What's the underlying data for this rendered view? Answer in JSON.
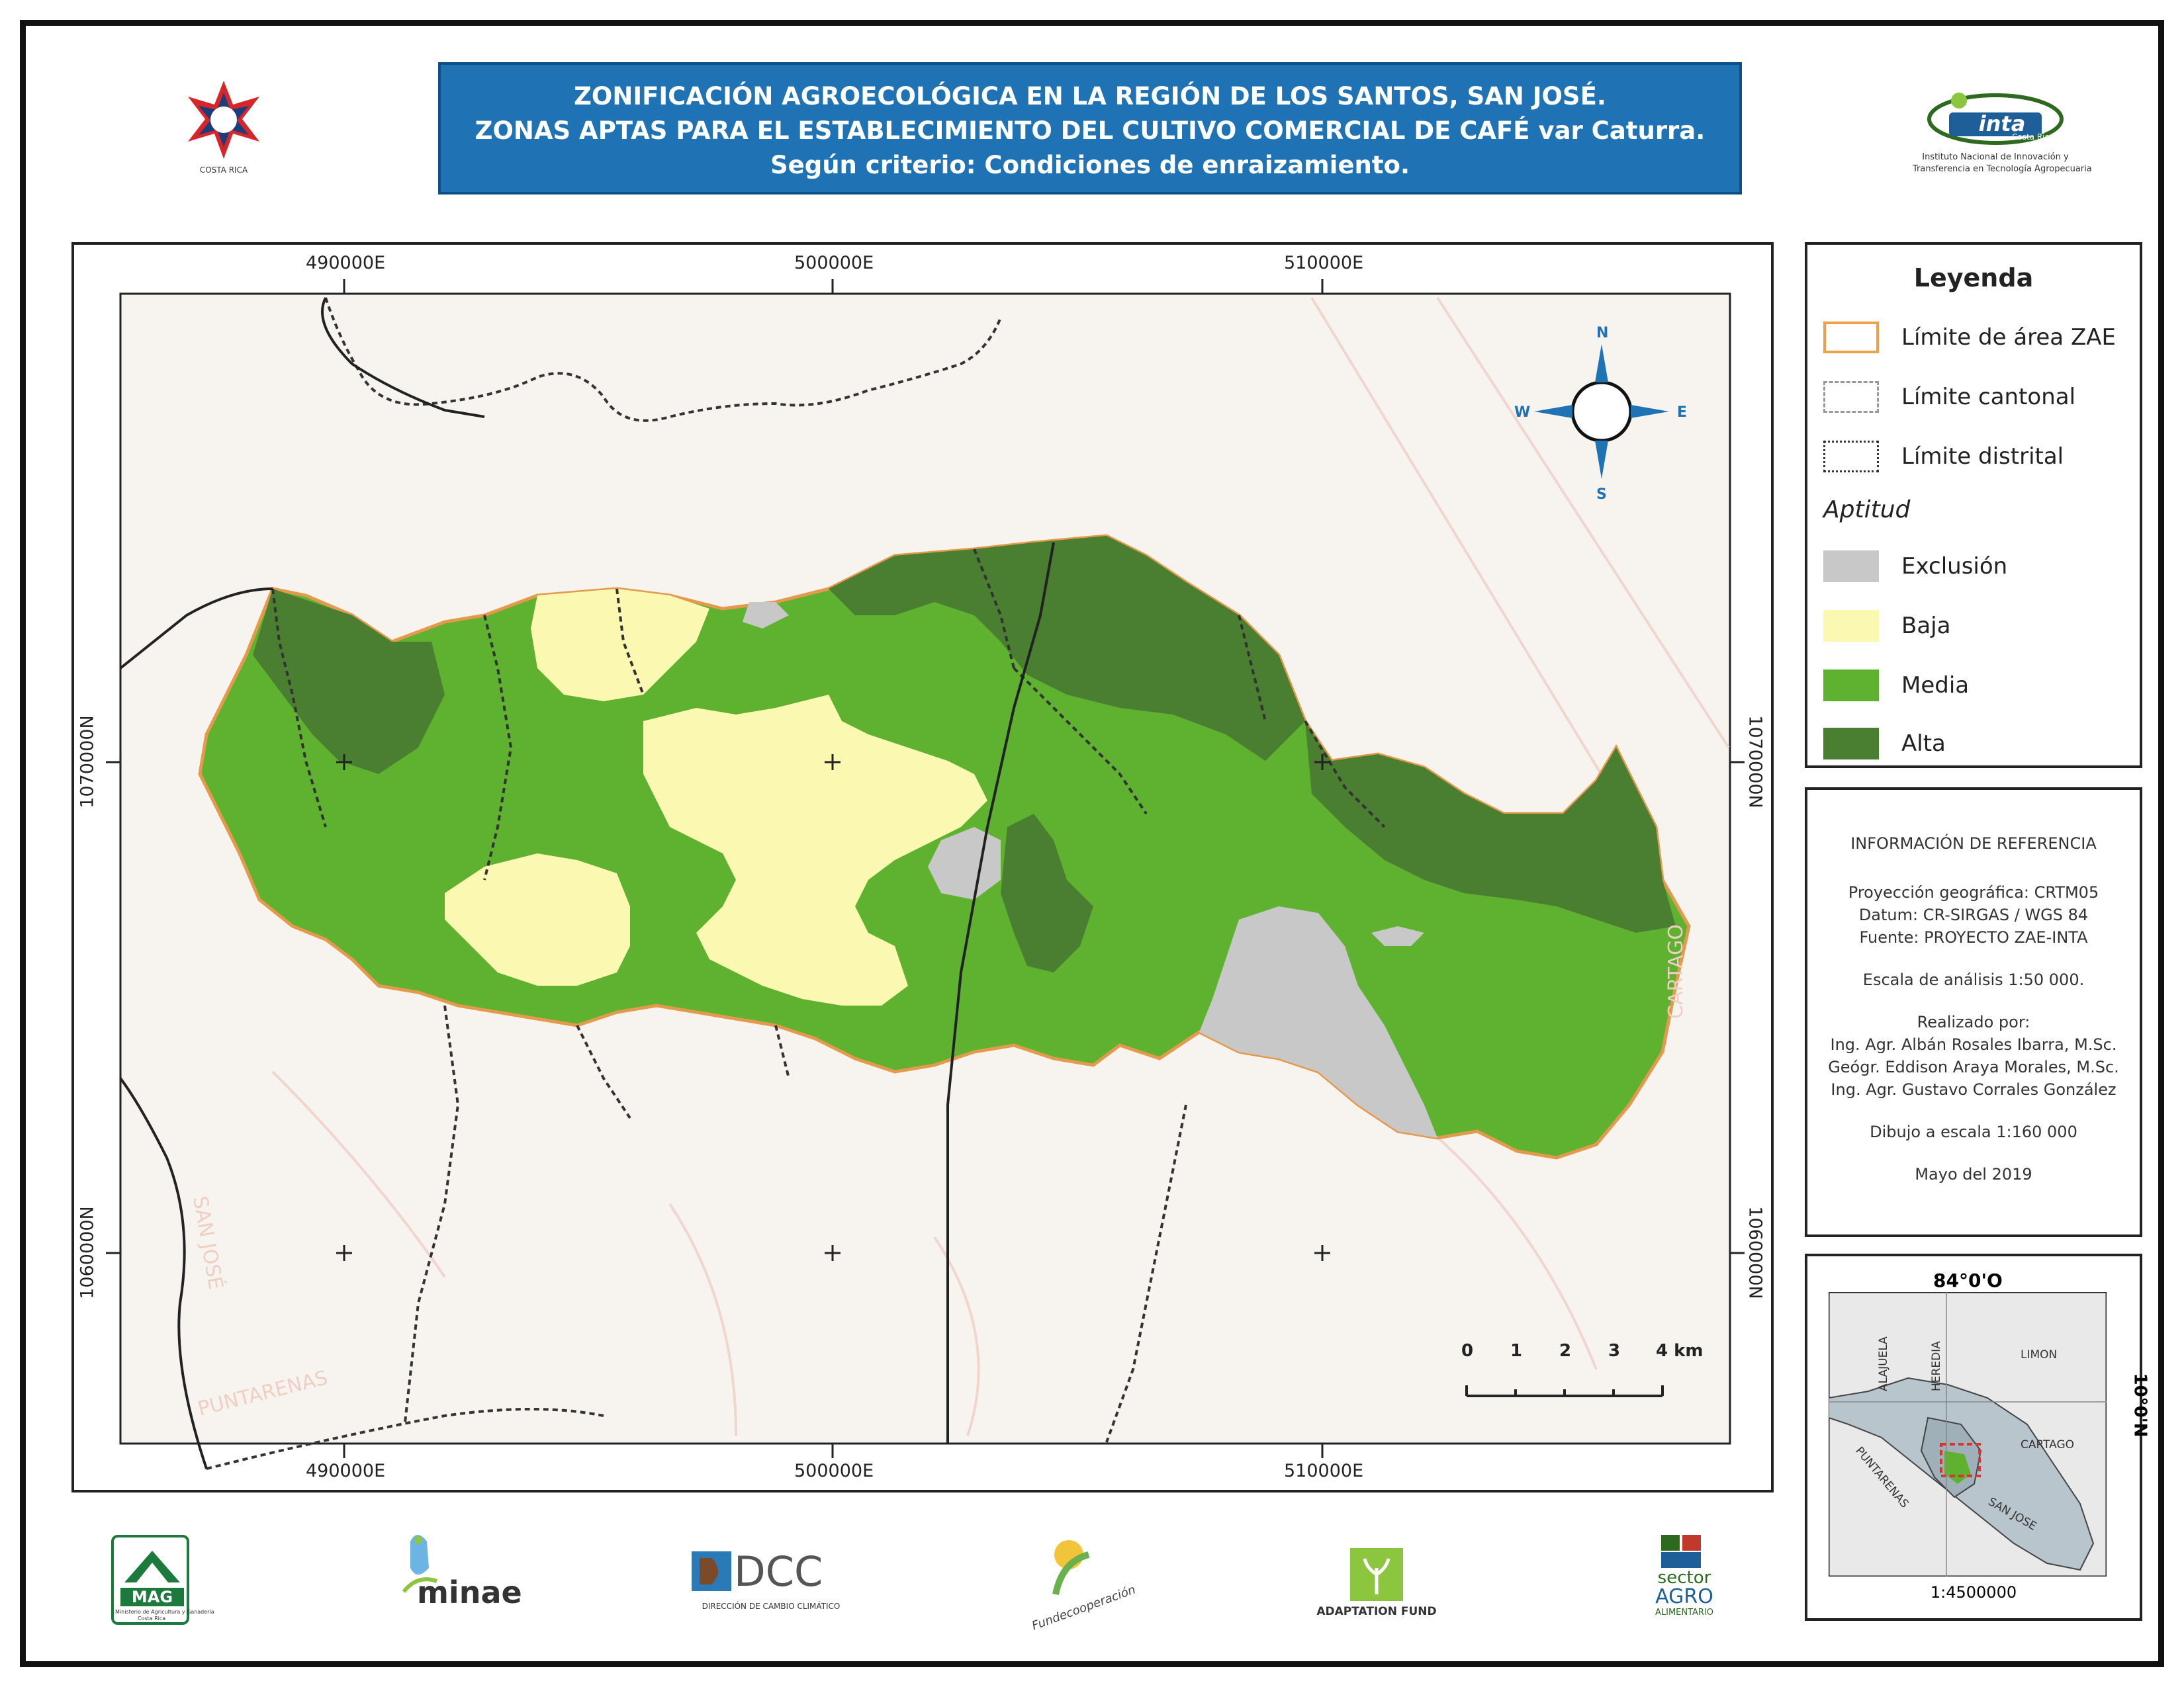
{
  "title": {
    "line1": "ZONIFICACIÓN AGROECOLÓGICA EN LA REGIÓN DE LOS SANTOS, SAN JOSÉ.",
    "line2": "ZONAS APTAS PARA EL ESTABLECIMIENTO DEL CULTIVO COMERCIAL DE CAFÉ var Caturra.",
    "line3": "Según criterio: Condiciones de enraizamiento."
  },
  "grid": {
    "x_labels": [
      "490000E",
      "500000E",
      "510000E"
    ],
    "y_labels": [
      "1070000N",
      "1060000N"
    ]
  },
  "map_labels": {
    "puntarenas": "PUNTARENAS",
    "cartago": "CARTAGO",
    "san_jose": "SAN JOSÉ"
  },
  "north_arrow": {
    "n": "N",
    "s": "S",
    "e": "E",
    "w": "W"
  },
  "scale_bar": {
    "ticks": [
      "0",
      "1",
      "2",
      "3",
      "4 km"
    ]
  },
  "legend": {
    "title": "Leyenda",
    "boundaries": [
      {
        "label": "Límite de área ZAE",
        "color": "#f0a04b",
        "style": "solid"
      },
      {
        "label": "Límite cantonal",
        "color": "#999999",
        "style": "dashed"
      },
      {
        "label": "Límite distrital",
        "color": "#333333",
        "style": "dotted"
      }
    ],
    "section": "Aptitud",
    "classes": [
      {
        "label": "Exclusión",
        "color": "#c8c8c8"
      },
      {
        "label": "Baja",
        "color": "#fbf8b2"
      },
      {
        "label": "Media",
        "color": "#5fb130"
      },
      {
        "label": "Alta",
        "color": "#4a7f32"
      }
    ]
  },
  "info": {
    "heading": "INFORMACIÓN DE REFERENCIA",
    "projection": "Proyección geográfica: CRTM05",
    "datum": "Datum: CR-SIRGAS / WGS 84",
    "source": "Fuente: PROYECTO ZAE-INTA",
    "scale": "Escala de análisis 1:50 000.",
    "made_by": "Realizado por:",
    "author1": "Ing. Agr. Albán Rosales Ibarra, M.Sc.",
    "author2": "Geógr. Eddison Araya  Morales, M.Sc.",
    "author3": "Ing. Agr. Gustavo Corrales González",
    "drawing_scale": "Dibujo a escala 1:160 000",
    "date": "Mayo del 2019"
  },
  "inset": {
    "lon_label": "84°0'O",
    "lat_label": "10°0'N",
    "scale": "1:4500000",
    "provinces": [
      "ALAJUELA",
      "HEREDIA",
      "LIMON",
      "CARTAGO",
      "PUNTARENAS",
      "SAN JOSE"
    ]
  },
  "logos": {
    "cr_label": "COSTA RICA",
    "inta": "inta",
    "inta_sub": "Costa Rica",
    "inta_caption1": "Instituto Nacional de Innovación y",
    "inta_caption2": "Transferencia en Tecnología Agropecuaria",
    "mag": "MAG",
    "mag_caption": "Ministerio de Agricultura y Ganadería",
    "mag_caption2": "Costa Rica",
    "minae": "minae",
    "dcc": "DCC",
    "dcc_caption": "DIRECCIÓN DE CAMBIO CLIMÁTICO",
    "fundecooperacion": "Fundecooperación",
    "adaptation": "ADAPTATION FUND",
    "sector": "sector",
    "agro": "AGRO",
    "alimentario": "ALIMENTARIO"
  }
}
